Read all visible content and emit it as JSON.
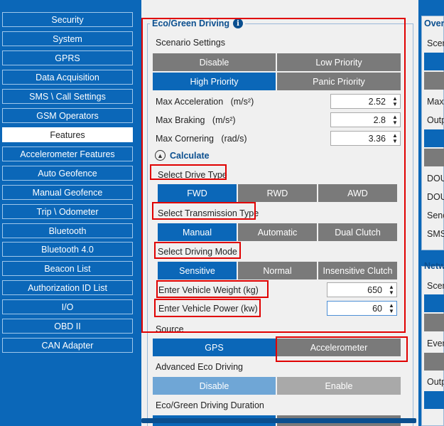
{
  "sidebar": {
    "items": [
      {
        "label": "Security"
      },
      {
        "label": "System"
      },
      {
        "label": "GPRS"
      },
      {
        "label": "Data Acquisition"
      },
      {
        "label": "SMS \\ Call Settings"
      },
      {
        "label": "GSM Operators"
      },
      {
        "label": "Features"
      },
      {
        "label": "Accelerometer Features"
      },
      {
        "label": "Auto Geofence"
      },
      {
        "label": "Manual Geofence"
      },
      {
        "label": "Trip \\ Odometer"
      },
      {
        "label": "Bluetooth"
      },
      {
        "label": "Bluetooth 4.0"
      },
      {
        "label": "Beacon List"
      },
      {
        "label": "Authorization ID List"
      },
      {
        "label": "I/O"
      },
      {
        "label": "OBD II"
      },
      {
        "label": "CAN Adapter"
      }
    ],
    "active": "Features"
  },
  "eco": {
    "title": "Eco/Green Driving",
    "info_icon": "i",
    "scenario_label": "Scenario Settings",
    "scenario_options": [
      "Disable",
      "Low Priority",
      "High Priority",
      "Panic Priority"
    ],
    "scenario_selected": "High Priority",
    "max_accel_label": "Max Acceleration",
    "max_accel_unit": "(m/s²)",
    "max_accel_value": "2.52",
    "max_brake_label": "Max Braking",
    "max_brake_unit": "(m/s²)",
    "max_brake_value": "2.8",
    "max_corner_label": "Max Cornering",
    "max_corner_unit": "(rad/s)",
    "max_corner_value": "3.36",
    "calculate_label": "Calculate",
    "drive_type_label": "Select Drive Type",
    "drive_type_options": [
      "FWD",
      "RWD",
      "AWD"
    ],
    "transmission_label": "Select Transmission Type",
    "transmission_options": [
      "Manual",
      "Automatic",
      "Dual Clutch"
    ],
    "driving_mode_label": "Select Driving Mode",
    "driving_mode_options": [
      "Sensitive",
      "Normal",
      "Insensitive Clutch"
    ],
    "weight_label": "Enter Vehicle Weight (kg)",
    "weight_value": "650",
    "power_label": "Enter Vehicle Power (kw)",
    "power_value": "60",
    "source_label": "Source",
    "source_options": [
      "GPS",
      "Accelerometer"
    ],
    "advanced_label": "Advanced Eco Driving",
    "advanced_options": [
      "Disable",
      "Enable"
    ],
    "duration_label": "Eco/Green Driving Duration"
  },
  "right_panel": {
    "over_title": "Over",
    "over_lines": [
      "Scer",
      "Max",
      "Outp",
      "DOU",
      "DOU",
      "Senc",
      "SMS"
    ],
    "netw_title": "Netw",
    "netw_lines": [
      "Scer",
      "Ever",
      "Outp"
    ]
  },
  "colors": {
    "accent": "#0b67b8",
    "unselected": "#7a7a7a",
    "highlight": "#e00000"
  }
}
